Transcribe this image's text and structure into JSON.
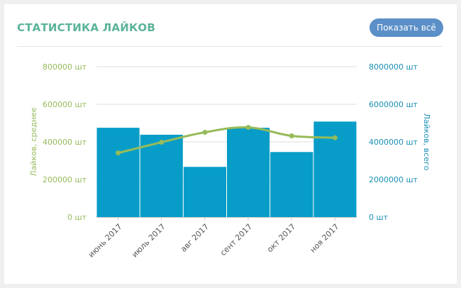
{
  "card": {
    "title": "Статистика лайков",
    "show_all_label": "Показать всё"
  },
  "colors": {
    "bar": "#079dc8",
    "line": "#96bb5a",
    "left_axis": "#96bb5a",
    "right_axis": "#1a8fb4",
    "title": "#5bb39a",
    "button": "#5b8fc7"
  },
  "chart_data": {
    "type": "bar+line",
    "categories": [
      "июнь 2017",
      "июль 2017",
      "авг 2017",
      "сент 2017",
      "окт 2017",
      "ноя 2017"
    ],
    "series": [
      {
        "type": "bar",
        "axis": "right",
        "values": [
          4750000,
          4380000,
          2670000,
          4750000,
          3460000,
          5080000
        ]
      },
      {
        "type": "line",
        "axis": "left",
        "values": [
          341000,
          398000,
          451000,
          477000,
          432000,
          422000
        ]
      }
    ],
    "left_axis": {
      "label": "Лайков, среднее",
      "ticks": [
        "0 шт",
        "200000 шт",
        "400000 шт",
        "600000 шт",
        "800000 шт"
      ],
      "range": [
        0,
        800000
      ]
    },
    "right_axis": {
      "label": "Лайков, всего",
      "ticks": [
        "0 шт",
        "2000000 шт",
        "4000000 шт",
        "6000000 шт",
        "8000000 шт"
      ],
      "range": [
        0,
        8000000
      ]
    },
    "grid": true,
    "legend": "none"
  }
}
